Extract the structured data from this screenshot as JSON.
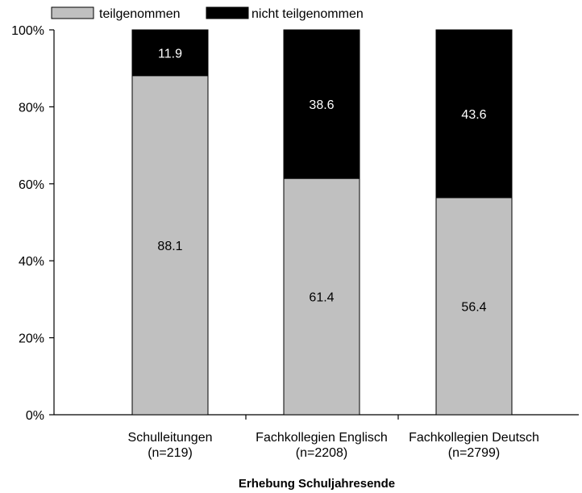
{
  "chart_data": {
    "type": "bar",
    "stacked": true,
    "categories": [
      [
        "Schulleitungen",
        "(n=219)"
      ],
      [
        "Fachkollegien Englisch",
        "(n=2208)"
      ],
      [
        "Fachkollegien Deutsch",
        "(n=2799)"
      ]
    ],
    "series": [
      {
        "name": "teilgenommen",
        "color": "#c0c0c0",
        "label_color": "#000000",
        "values": [
          88.1,
          61.4,
          56.4
        ]
      },
      {
        "name": "nicht teilgenommen",
        "color": "#000000",
        "label_color": "#ffffff",
        "values": [
          11.9,
          38.6,
          43.6
        ]
      }
    ],
    "yticks": [
      "0%",
      "20%",
      "40%",
      "60%",
      "80%",
      "100%"
    ],
    "ylim": [
      0,
      100
    ],
    "xlabel": "Erhebung Schuljahresende",
    "ylabel": "",
    "grid": false,
    "legend_position": "top-left"
  }
}
